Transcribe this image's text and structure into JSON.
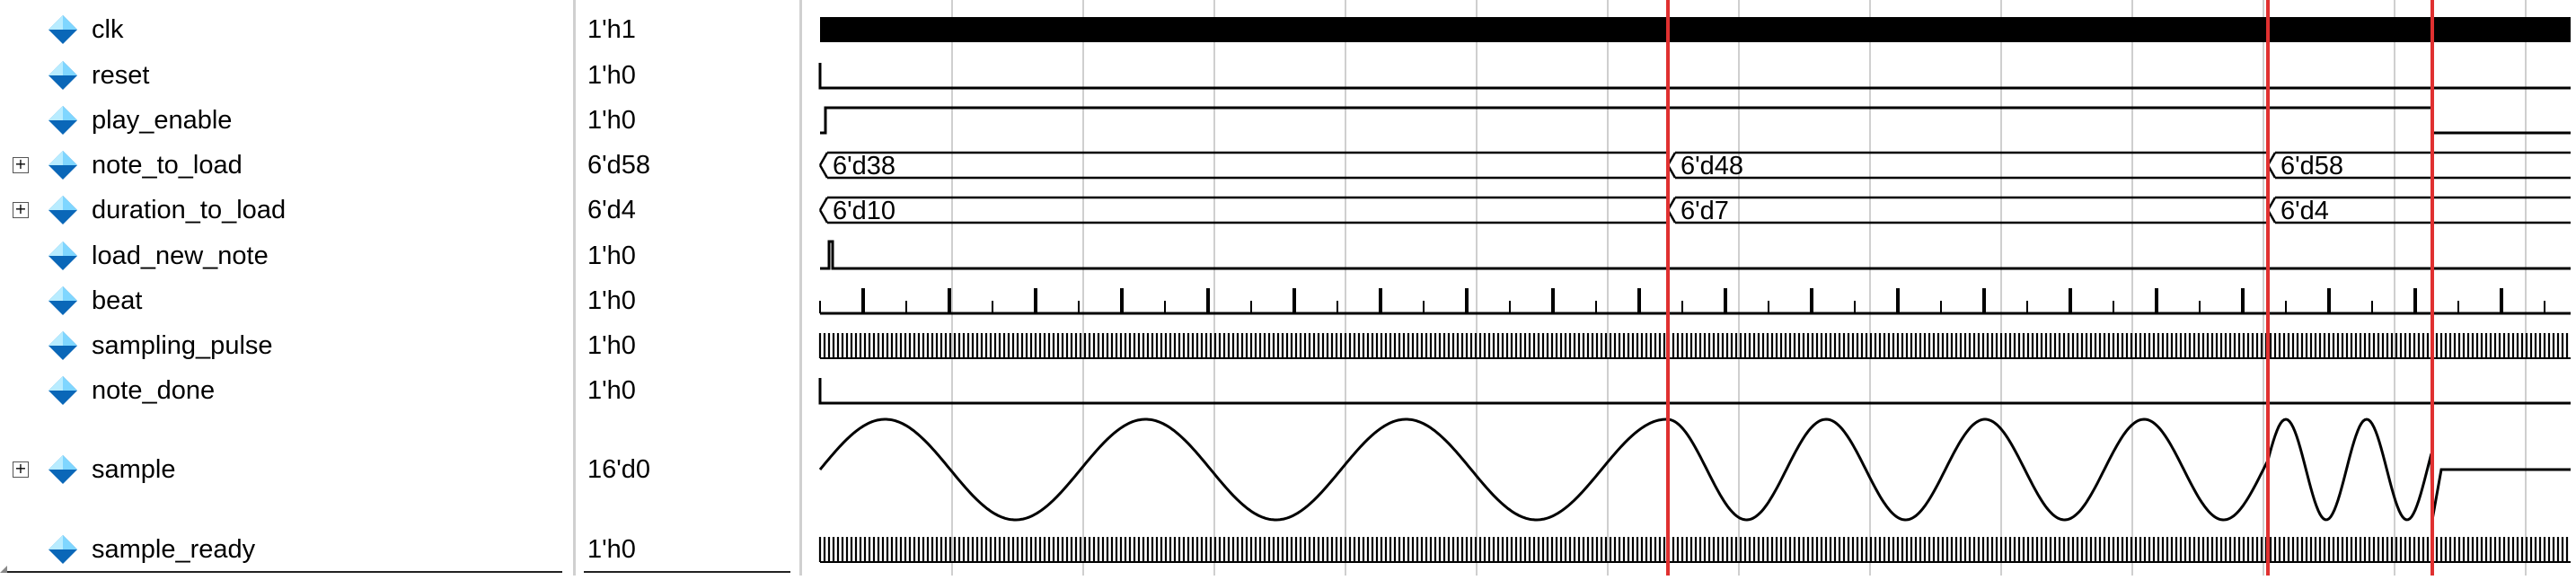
{
  "signals": [
    {
      "name": "clk",
      "value": "1'h1",
      "expandable": false,
      "kind": "clock"
    },
    {
      "name": "reset",
      "value": "1'h0",
      "expandable": false,
      "kind": "bit"
    },
    {
      "name": "play_enable",
      "value": "1'h0",
      "expandable": false,
      "kind": "bit"
    },
    {
      "name": "note_to_load",
      "value": "6'd58",
      "expandable": true,
      "kind": "bus",
      "segments": [
        "6'd38",
        "6'd48",
        "6'd58"
      ]
    },
    {
      "name": "duration_to_load",
      "value": "6'd4",
      "expandable": true,
      "kind": "bus",
      "segments": [
        "6'd10",
        "6'd7",
        "6'd4"
      ]
    },
    {
      "name": "load_new_note",
      "value": "1'h0",
      "expandable": false,
      "kind": "bit"
    },
    {
      "name": "beat",
      "value": "1'h0",
      "expandable": false,
      "kind": "pulses"
    },
    {
      "name": "sampling_pulse",
      "value": "1'h0",
      "expandable": false,
      "kind": "dense"
    },
    {
      "name": "note_done",
      "value": "1'h0",
      "expandable": false,
      "kind": "bit"
    },
    {
      "name": "sample",
      "value": "16'd0",
      "expandable": true,
      "kind": "analog"
    },
    {
      "name": "sample_ready",
      "value": "1'h0",
      "expandable": false,
      "kind": "dense"
    }
  ],
  "colors": {
    "icon_light": "#7fd6ff",
    "icon_dark": "#0a67b8",
    "cursor": "#e03030",
    "grid": "#cfcfcf",
    "trace": "#000000"
  }
}
